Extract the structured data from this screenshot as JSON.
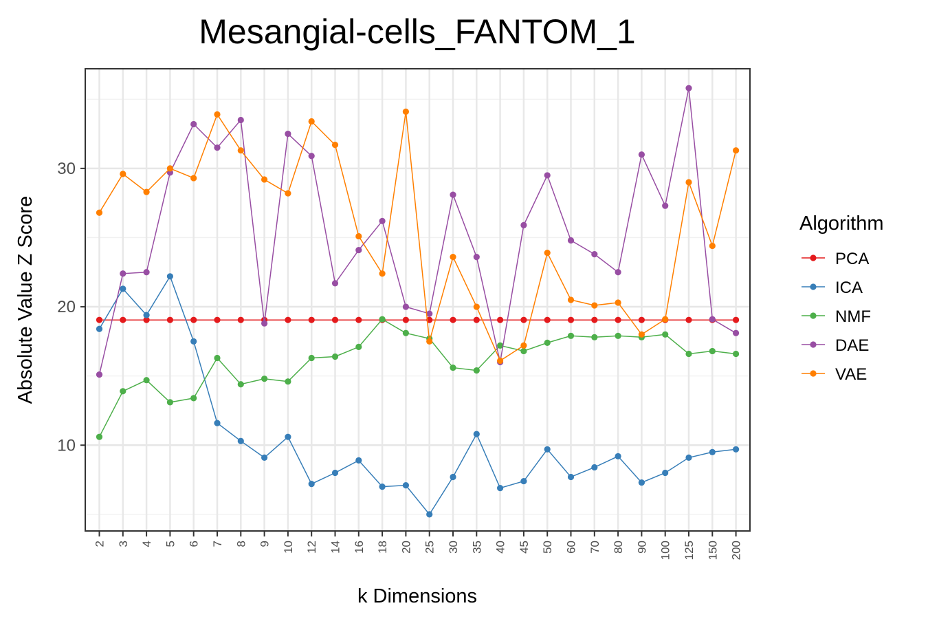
{
  "chart_data": {
    "type": "line",
    "title": "Mesangial-cells_FANTOM_1",
    "xlabel": "k Dimensions",
    "ylabel": "Absolute Value Z Score",
    "x_type": "categorical",
    "categories": [
      "2",
      "3",
      "4",
      "5",
      "6",
      "7",
      "8",
      "9",
      "10",
      "12",
      "14",
      "16",
      "18",
      "20",
      "25",
      "30",
      "35",
      "40",
      "45",
      "50",
      "60",
      "70",
      "80",
      "90",
      "100",
      "125",
      "150",
      "200"
    ],
    "ylim": [
      3.8,
      37.2
    ],
    "yticks": [
      10,
      20,
      30
    ],
    "grid": true,
    "legend": {
      "title": "Algorithm",
      "position": "right"
    },
    "series": [
      {
        "name": "PCA",
        "color": "#E41A1C",
        "values": [
          19.05,
          19.05,
          19.05,
          19.05,
          19.05,
          19.05,
          19.05,
          19.05,
          19.05,
          19.05,
          19.05,
          19.05,
          19.05,
          19.05,
          19.05,
          19.05,
          19.05,
          19.05,
          19.05,
          19.05,
          19.05,
          19.05,
          19.05,
          19.05,
          19.05,
          19.05,
          19.05,
          19.05
        ]
      },
      {
        "name": "ICA",
        "color": "#377EB8",
        "values": [
          18.4,
          21.3,
          19.4,
          22.2,
          17.5,
          11.6,
          10.3,
          9.1,
          10.6,
          7.2,
          8.0,
          8.9,
          7.0,
          7.1,
          5.0,
          7.7,
          10.8,
          6.9,
          7.4,
          9.7,
          7.7,
          8.4,
          9.2,
          7.3,
          8.0,
          9.1,
          9.5,
          9.7
        ]
      },
      {
        "name": "NMF",
        "color": "#4DAF4A",
        "values": [
          10.6,
          13.9,
          14.7,
          13.1,
          13.4,
          16.3,
          14.4,
          14.8,
          14.6,
          16.3,
          16.4,
          17.1,
          19.1,
          18.1,
          17.7,
          15.6,
          15.4,
          17.2,
          16.8,
          17.4,
          17.9,
          17.8,
          17.9,
          17.8,
          18.0,
          16.6,
          16.8,
          16.6
        ]
      },
      {
        "name": "DAE",
        "color": "#984EA3",
        "values": [
          15.1,
          22.4,
          22.5,
          29.7,
          33.2,
          31.5,
          33.5,
          18.8,
          32.5,
          30.9,
          21.7,
          24.1,
          26.2,
          20.0,
          19.5,
          28.1,
          23.6,
          16.0,
          25.9,
          29.5,
          24.8,
          23.8,
          22.5,
          31.0,
          27.3,
          35.8,
          19.1,
          18.1
        ]
      },
      {
        "name": "VAE",
        "color": "#FF7F00",
        "values": [
          26.8,
          29.6,
          28.3,
          30.0,
          29.3,
          33.9,
          31.3,
          29.2,
          28.2,
          33.4,
          31.7,
          25.1,
          22.4,
          34.1,
          17.5,
          23.6,
          20.0,
          16.1,
          17.2,
          23.9,
          20.5,
          20.1,
          20.3,
          18.0,
          19.1,
          29.0,
          24.4,
          31.3
        ]
      }
    ]
  }
}
